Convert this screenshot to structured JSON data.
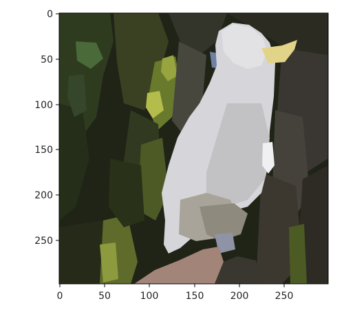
{
  "image": {
    "subject": "white bird (cockatoo) perched on a branch",
    "style": "posterized / segmented color regions",
    "palette": {
      "background_dark": "#1e2215",
      "foliage_green": "#3d4a28",
      "moss_green": "#6f7d35",
      "bright_leaf": "#a8b347",
      "bird_white": "#dcdce0",
      "bird_shadow": "#b9b8bc",
      "beak_yellow": "#e1d489",
      "branch_pink": "#a28478",
      "eye_patch_blue": "#6f80a3"
    }
  },
  "axes": {
    "x_ticks": [
      "0",
      "50",
      "100",
      "150",
      "200",
      "250"
    ],
    "y_ticks": [
      "0",
      "50",
      "100",
      "150",
      "200",
      "250"
    ]
  }
}
